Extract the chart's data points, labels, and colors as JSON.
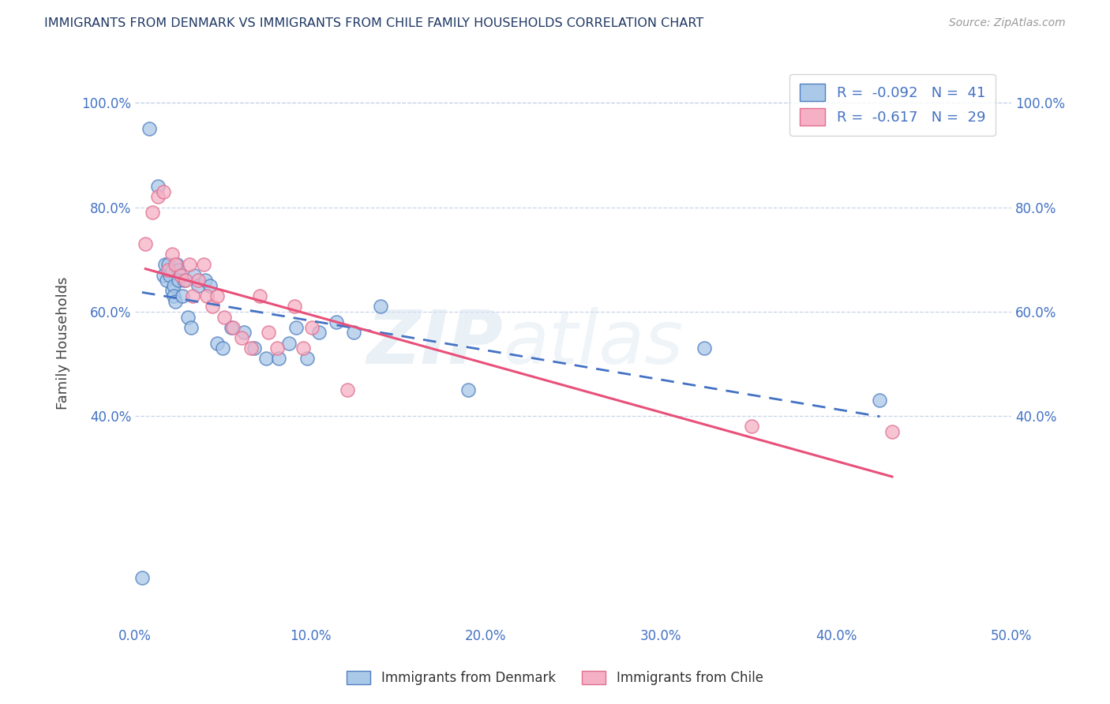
{
  "title": "IMMIGRANTS FROM DENMARK VS IMMIGRANTS FROM CHILE FAMILY HOUSEHOLDS CORRELATION CHART",
  "source": "Source: ZipAtlas.com",
  "ylabel": "Family Households",
  "xlim": [
    0.0,
    0.5
  ],
  "ylim": [
    0.0,
    1.08
  ],
  "xtick_labels": [
    "0.0%",
    "10.0%",
    "20.0%",
    "30.0%",
    "40.0%",
    "50.0%"
  ],
  "xtick_vals": [
    0.0,
    0.1,
    0.2,
    0.3,
    0.4,
    0.5
  ],
  "ytick_labels": [
    "40.0%",
    "60.0%",
    "80.0%",
    "100.0%"
  ],
  "ytick_vals": [
    0.4,
    0.6,
    0.8,
    1.0
  ],
  "watermark_part1": "ZIP",
  "watermark_part2": "atlas",
  "legend_r1_label": "R = ",
  "legend_r1_val": "-0.092",
  "legend_n1_label": "N = ",
  "legend_n1_val": "41",
  "legend_r2_label": "R = ",
  "legend_r2_val": "-0.617",
  "legend_n2_label": "N = ",
  "legend_n2_val": "29",
  "color_denmark": "#aac8e8",
  "color_chile": "#f5b0c5",
  "color_denmark_edge": "#5080c0",
  "color_chile_edge": "#e07090",
  "color_denmark_line": "#4472c4",
  "color_chile_line": "#e8507a",
  "color_title": "#1f3864",
  "color_axis_tick": "#4472c4",
  "color_legend_val": "#4472c4",
  "background_color": "#ffffff",
  "grid_color": "#c8d4e8",
  "denmark_x": [
    0.004,
    0.008,
    0.013,
    0.016,
    0.017,
    0.018,
    0.019,
    0.02,
    0.021,
    0.021,
    0.022,
    0.022,
    0.023,
    0.024,
    0.025,
    0.025,
    0.027,
    0.028,
    0.03,
    0.032,
    0.034,
    0.036,
    0.04,
    0.043,
    0.047,
    0.05,
    0.055,
    0.062,
    0.068,
    0.075,
    0.082,
    0.088,
    0.092,
    0.098,
    0.105,
    0.115,
    0.125,
    0.14,
    0.19,
    0.325,
    0.425
  ],
  "denmark_y": [
    0.09,
    0.95,
    0.84,
    0.67,
    0.69,
    0.66,
    0.69,
    0.67,
    0.68,
    0.64,
    0.65,
    0.63,
    0.62,
    0.69,
    0.68,
    0.66,
    0.63,
    0.66,
    0.59,
    0.57,
    0.67,
    0.65,
    0.66,
    0.65,
    0.54,
    0.53,
    0.57,
    0.56,
    0.53,
    0.51,
    0.51,
    0.54,
    0.57,
    0.51,
    0.56,
    0.58,
    0.56,
    0.61,
    0.45,
    0.53,
    0.43
  ],
  "chile_x": [
    0.006,
    0.01,
    0.013,
    0.016,
    0.019,
    0.021,
    0.023,
    0.026,
    0.029,
    0.031,
    0.033,
    0.036,
    0.039,
    0.041,
    0.044,
    0.047,
    0.051,
    0.056,
    0.061,
    0.066,
    0.071,
    0.076,
    0.081,
    0.091,
    0.096,
    0.101,
    0.121,
    0.352,
    0.432
  ],
  "chile_y": [
    0.73,
    0.79,
    0.82,
    0.83,
    0.68,
    0.71,
    0.69,
    0.67,
    0.66,
    0.69,
    0.63,
    0.66,
    0.69,
    0.63,
    0.61,
    0.63,
    0.59,
    0.57,
    0.55,
    0.53,
    0.63,
    0.56,
    0.53,
    0.61,
    0.53,
    0.57,
    0.45,
    0.38,
    0.37
  ]
}
